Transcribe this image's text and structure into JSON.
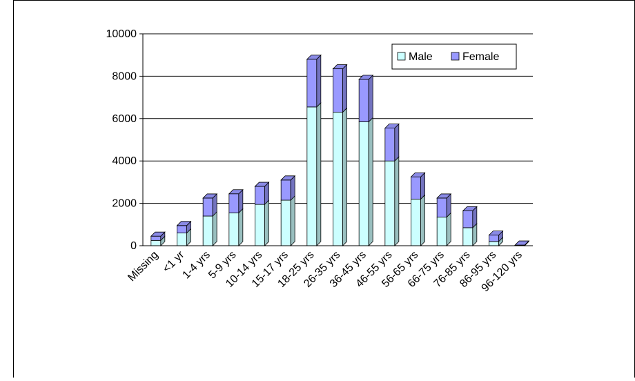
{
  "chart_data": {
    "type": "bar",
    "stacked": true,
    "categories": [
      "Missing",
      "<1 yr",
      "1-4 yrs",
      "5-9 yrs",
      "10-14 yrs",
      "15-17 yrs",
      "18-25 yrs",
      "26-35 yrs",
      "36-45 yrs",
      "46-55 yrs",
      "56-65 yrs",
      "66-75 yrs",
      "76-85 yrs",
      "86-95 yrs",
      "96-120 yrs"
    ],
    "series": [
      {
        "name": "Male",
        "color": "#ccffff",
        "values": [
          250,
          600,
          1400,
          1550,
          1950,
          2150,
          6550,
          6300,
          5850,
          4000,
          2200,
          1350,
          850,
          200,
          10
        ]
      },
      {
        "name": "Female",
        "color": "#9999ff",
        "values": [
          200,
          350,
          850,
          900,
          850,
          950,
          2250,
          2050,
          2000,
          1550,
          1050,
          900,
          800,
          300,
          20
        ]
      }
    ],
    "yticks": [
      "0",
      "2000",
      "4000",
      "6000",
      "8000",
      "10000"
    ],
    "ylim": [
      0,
      10000
    ],
    "grid": true,
    "legend": "top-right",
    "title": "",
    "xlabel": "",
    "ylabel": ""
  }
}
